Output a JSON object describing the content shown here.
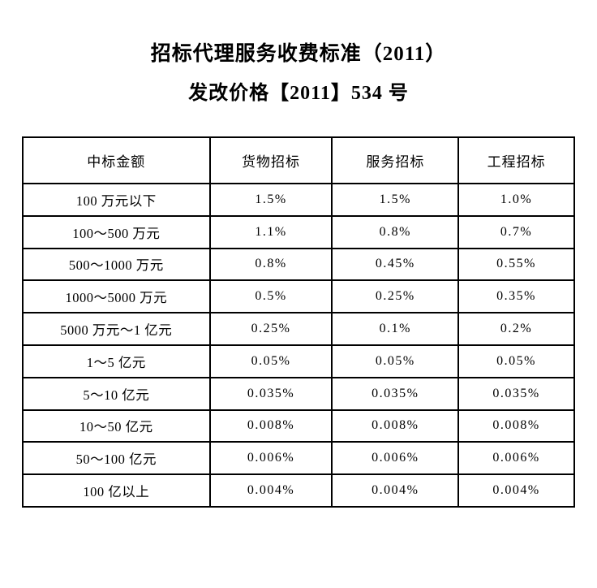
{
  "document": {
    "title": "招标代理服务收费标准（2011）",
    "subtitle": "发改价格【2011】534 号"
  },
  "table": {
    "headers": [
      "中标金额",
      "货物招标",
      "服务招标",
      "工程招标"
    ],
    "rows": [
      {
        "amount": "100 万元以下",
        "goods": "1.5%",
        "service": "1.5%",
        "engineering": "1.0%"
      },
      {
        "amount": "100～500 万元",
        "goods": "1.1%",
        "service": "0.8%",
        "engineering": "0.7%"
      },
      {
        "amount": "500～1000 万元",
        "goods": "0.8%",
        "service": "0.45%",
        "engineering": "0.55%"
      },
      {
        "amount": "1000～5000 万元",
        "goods": "0.5%",
        "service": "0.25%",
        "engineering": "0.35%"
      },
      {
        "amount": "5000 万元～1 亿元",
        "goods": "0.25%",
        "service": "0.1%",
        "engineering": "0.2%"
      },
      {
        "amount": "1～5 亿元",
        "goods": "0.05%",
        "service": "0.05%",
        "engineering": "0.05%"
      },
      {
        "amount": "5～10 亿元",
        "goods": "0.035%",
        "service": "0.035%",
        "engineering": "0.035%"
      },
      {
        "amount": "10～50 亿元",
        "goods": "0.008%",
        "service": "0.008%",
        "engineering": "0.008%"
      },
      {
        "amount": "50～100 亿元",
        "goods": "0.006%",
        "service": "0.006%",
        "engineering": "0.006%"
      },
      {
        "amount": "100 亿以上",
        "goods": "0.004%",
        "service": "0.004%",
        "engineering": "0.004%"
      }
    ]
  },
  "colors": {
    "text": "#000000",
    "border": "#000000",
    "background": "#ffffff"
  }
}
